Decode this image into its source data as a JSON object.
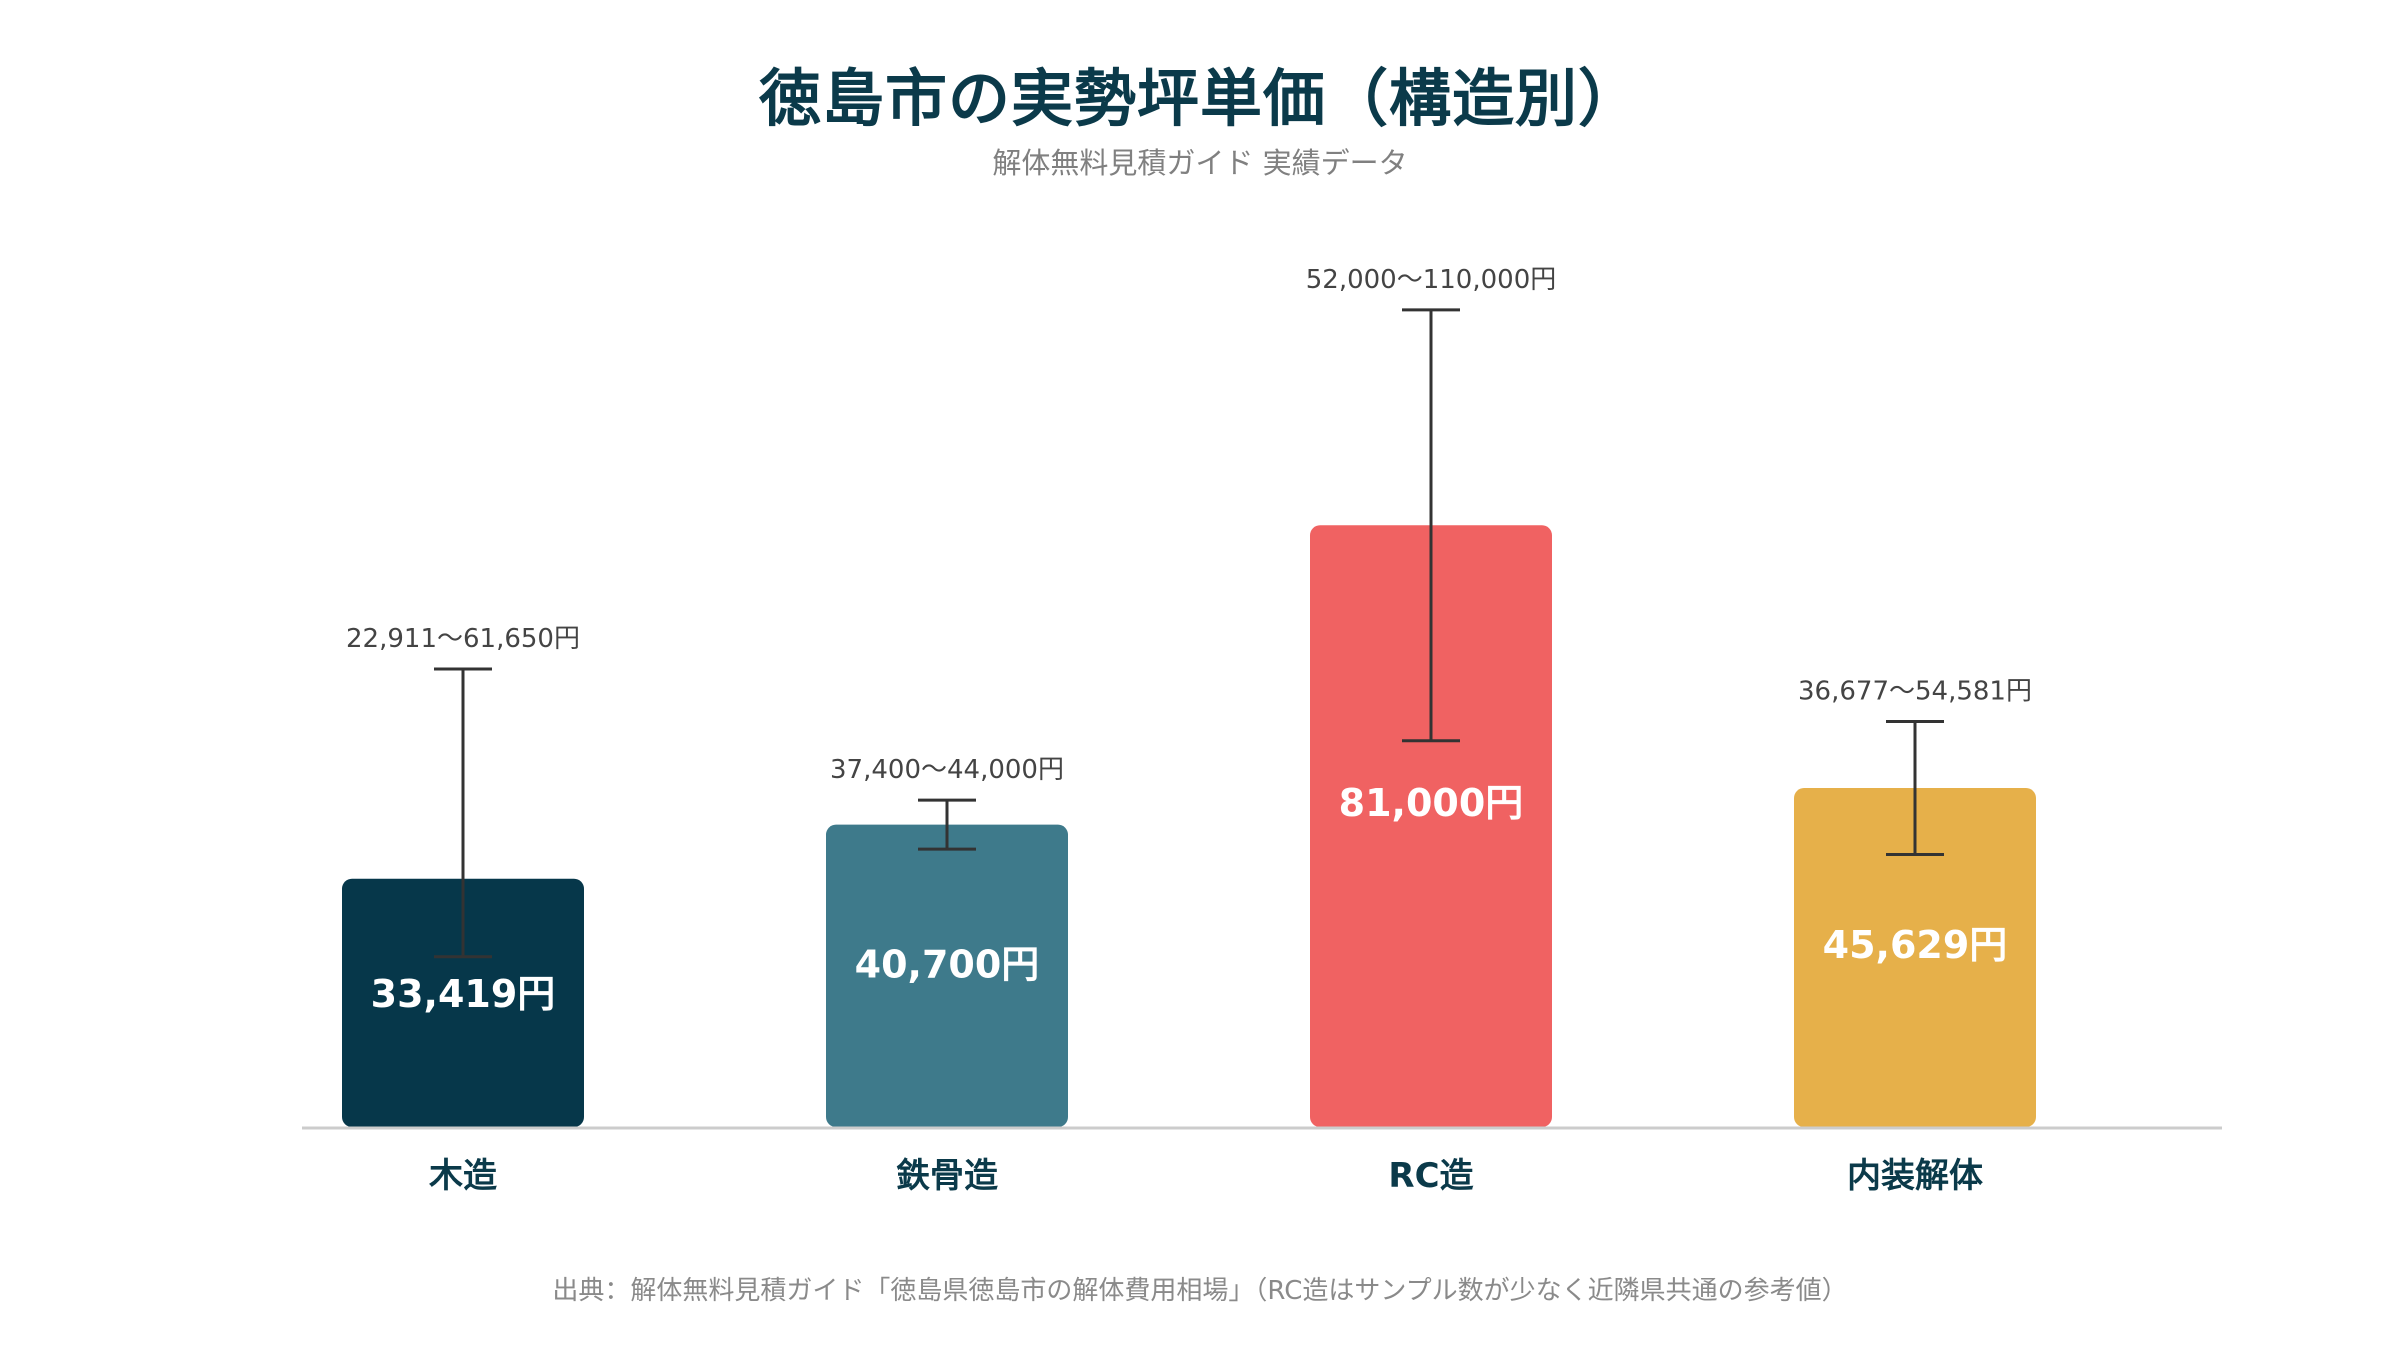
{
  "chart_data": {
    "type": "bar",
    "title": "徳島市の実勢坪単価（構造別）",
    "subtitle": "解体無料見積ガイド 実績データ",
    "source": "出典：解体無料見積ガイド「徳島県徳島市の解体費用相場」（RC造はサンプル数が少なく近隣県共通の参考値）",
    "categories": [
      "木造",
      "鉄骨造",
      "RC造",
      "内装解体"
    ],
    "values": [
      33419,
      40700,
      81000,
      45629
    ],
    "value_labels": [
      "33,419円",
      "40,700円",
      "81,000円",
      "45,629円"
    ],
    "ranges": [
      [
        22911,
        61650
      ],
      [
        37400,
        44000
      ],
      [
        52000,
        110000
      ],
      [
        36677,
        54581
      ]
    ],
    "range_labels": [
      "22,911～61,650円",
      "37,400～44,000円",
      "52,000～110,000円",
      "36,677～54,581円"
    ],
    "colors": [
      "#06374a",
      "#3e7a8b",
      "#f06262",
      "#e6b04a"
    ],
    "ylim": [
      0,
      120000
    ],
    "grid": false,
    "xlabel": "",
    "ylabel": ""
  }
}
